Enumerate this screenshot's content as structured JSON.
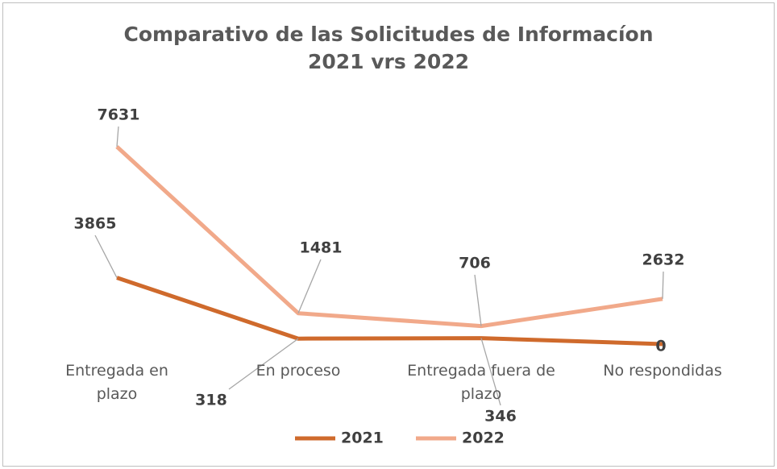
{
  "chart_data": {
    "type": "line",
    "stacked": true,
    "title": "Comparativo de las Solicitudes de Informacíon 2021 vrs 2022",
    "categories": [
      "Entregada en plazo",
      "En proceso",
      "Entregada fuera de plazo",
      "No respondidas"
    ],
    "series": [
      {
        "name": "2021",
        "color": "#cf6a2c",
        "values": [
          3865,
          318,
          346,
          0
        ]
      },
      {
        "name": "2022",
        "color": "#f1a98a",
        "values": [
          7631,
          1481,
          706,
          2632
        ]
      }
    ],
    "legend": "bottom"
  }
}
